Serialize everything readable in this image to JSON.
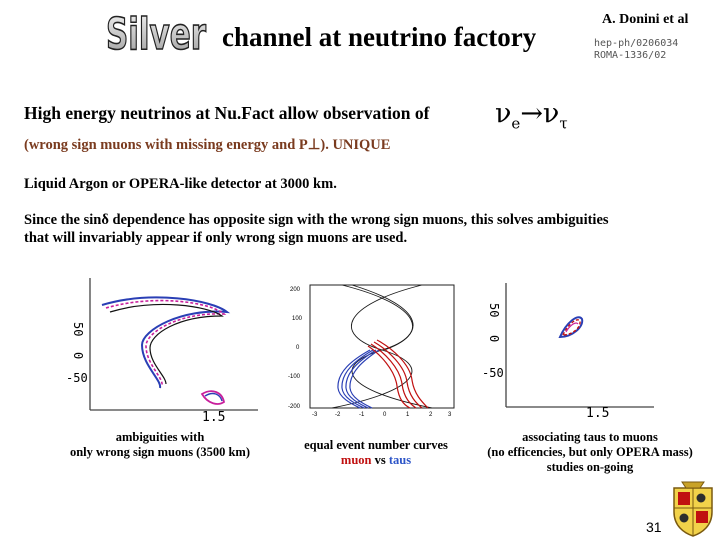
{
  "header": {
    "logo_word": "Silver",
    "title": "channel at neutrino factory",
    "author": "A. Donini et al",
    "ref_line1": "hep-ph/0206034",
    "ref_line2": "ROMA-1336/02"
  },
  "body": {
    "headline": "High energy neutrinos at Nu.Fact allow observation of",
    "nu_e": "e",
    "nu_tau": "τ",
    "subline": "(wrong sign muons with missing energy and P⊥).  UNIQUE",
    "line_detector": "Liquid Argon or OPERA-like detector at 3000 km.",
    "line_since_1": "Since the sinδ dependence has opposite sign with the wrong sign muons, this solves ambiguities",
    "line_since_2": "that will invariably appear if only wrong sign muons are used."
  },
  "panels": {
    "left": {
      "y_labels": [
        "50",
        "0",
        "-50"
      ],
      "x_labels": [
        "1.5"
      ],
      "caption_line1": "ambiguities with",
      "caption_line2": "only wrong sign muons (3500 km)"
    },
    "middle": {
      "y_labels": [
        "200",
        "100",
        "0",
        "-100",
        "-200"
      ],
      "x_labels": [
        "-3",
        "-2",
        "-1",
        "0",
        "1",
        "2",
        "3"
      ],
      "caption_line1": "equal event number curves",
      "caption_muon": "muon",
      "caption_vs": "vs",
      "caption_taus": "taus"
    },
    "right": {
      "y_labels": [
        "50",
        "0",
        "-50"
      ],
      "x_labels": [
        "1.5"
      ],
      "caption_line1": "associating taus to muons",
      "caption_line2": "(no efficencies, but only OPERA mass)",
      "caption_line3": "studies on-going"
    }
  },
  "footer": {
    "page_number": "31"
  },
  "colors": {
    "muon": "#c01010",
    "tau": "#2d55c8",
    "subline": "#7a3b1f"
  }
}
